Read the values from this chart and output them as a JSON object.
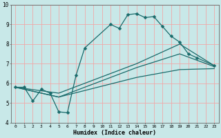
{
  "xlabel": "Humidex (Indice chaleur)",
  "ylabel": "",
  "background_color": "#c8e8e8",
  "grid_color": "#f0a8a8",
  "line_color": "#1a6b6b",
  "xlim": [
    -0.5,
    23.5
  ],
  "ylim": [
    4,
    10
  ],
  "xticks": [
    0,
    1,
    2,
    3,
    4,
    5,
    6,
    7,
    8,
    9,
    10,
    11,
    12,
    13,
    14,
    15,
    16,
    17,
    18,
    19,
    20,
    21,
    22,
    23
  ],
  "yticks": [
    4,
    5,
    6,
    7,
    8,
    9,
    10
  ],
  "line1": {
    "x": [
      0,
      1,
      2,
      3,
      4,
      5,
      6,
      7,
      8,
      11,
      12,
      13,
      14,
      15,
      16,
      17,
      18,
      19,
      20,
      21,
      23
    ],
    "y": [
      5.8,
      5.8,
      5.1,
      5.7,
      5.5,
      4.55,
      4.5,
      6.4,
      7.8,
      9.0,
      8.8,
      9.5,
      9.55,
      9.35,
      9.4,
      8.9,
      8.4,
      8.1,
      7.5,
      7.3,
      6.9
    ]
  },
  "line2": {
    "x": [
      0,
      5,
      14,
      19,
      23
    ],
    "y": [
      5.8,
      5.5,
      7.0,
      8.0,
      6.9
    ]
  },
  "line3": {
    "x": [
      0,
      5,
      14,
      19,
      23
    ],
    "y": [
      5.8,
      5.3,
      6.8,
      7.5,
      6.85
    ]
  },
  "line4": {
    "x": [
      0,
      5,
      14,
      19,
      23
    ],
    "y": [
      5.8,
      5.3,
      6.3,
      6.7,
      6.75
    ]
  }
}
